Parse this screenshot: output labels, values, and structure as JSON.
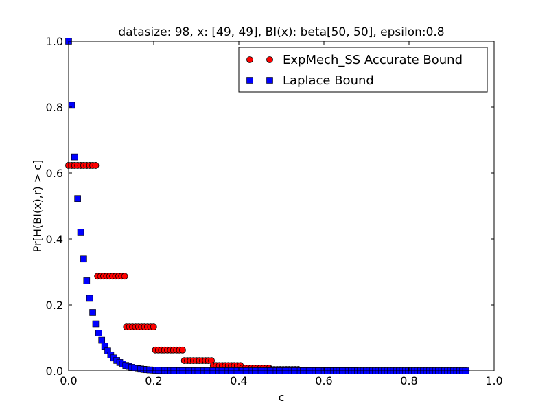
{
  "chart_data": {
    "type": "scatter",
    "title": "datasize: 98, x: [49, 49], BI(x): beta[50, 50], epsilon:0.8",
    "xlabel": "c",
    "ylabel": "Pr[H(BI(x),r) > c]",
    "xlim": [
      0.0,
      1.0
    ],
    "ylim": [
      0.0,
      1.0
    ],
    "xticks": [
      "0.0",
      "0.2",
      "0.4",
      "0.6",
      "0.8",
      "1.0"
    ],
    "yticks": [
      "0.0",
      "0.2",
      "0.4",
      "0.6",
      "0.8",
      "1.0"
    ],
    "grid": false,
    "legend_position": "top-right",
    "series": [
      {
        "name": "ExpMech_SS Accurate Bound",
        "marker": "circle",
        "color": "#ff0000",
        "steps": [
          {
            "x0": 0.0,
            "x1": 0.068,
            "y": 0.623
          },
          {
            "x0": 0.068,
            "x1": 0.136,
            "y": 0.287
          },
          {
            "x0": 0.136,
            "x1": 0.204,
            "y": 0.133
          },
          {
            "x0": 0.204,
            "x1": 0.272,
            "y": 0.063
          },
          {
            "x0": 0.272,
            "x1": 0.34,
            "y": 0.031
          },
          {
            "x0": 0.34,
            "x1": 0.408,
            "y": 0.016
          },
          {
            "x0": 0.408,
            "x1": 0.476,
            "y": 0.008
          },
          {
            "x0": 0.476,
            "x1": 0.544,
            "y": 0.004
          },
          {
            "x0": 0.544,
            "x1": 0.612,
            "y": 0.002
          },
          {
            "x0": 0.612,
            "x1": 0.68,
            "y": 0.001
          },
          {
            "x0": 0.68,
            "x1": 0.94,
            "y": 0.0
          }
        ]
      },
      {
        "name": "Laplace Bound",
        "marker": "square",
        "color": "#0000ff",
        "x_start": 0.0,
        "x_end": 0.94,
        "x_step": 0.00707,
        "y_formula": "exp(-30.6*x)"
      }
    ]
  }
}
